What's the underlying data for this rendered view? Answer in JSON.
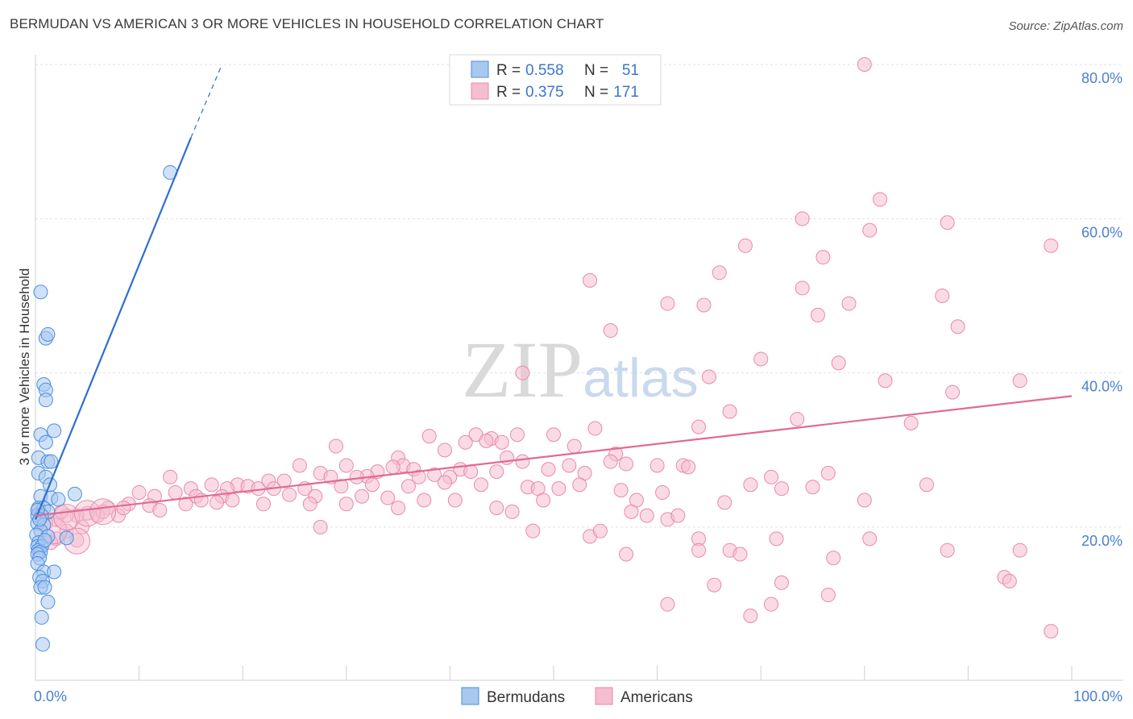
{
  "header": {
    "title": "BERMUDAN VS AMERICAN 3 OR MORE VEHICLES IN HOUSEHOLD CORRELATION CHART",
    "source": "Source: ZipAtlas.com"
  },
  "colors": {
    "blue": "#4a8fe0",
    "blue_fill": "#a9c8f0",
    "blue_line": "#2e6fcc",
    "pink": "#e88aa8",
    "pink_fill": "#f5bdd0",
    "pink_line": "#e06a95",
    "tick": "#4a7fd0"
  },
  "chart_data": {
    "type": "scatter",
    "title": "BERMUDAN VS AMERICAN 3 OR MORE VEHICLES IN HOUSEHOLD CORRELATION CHART",
    "ylabel": "3 or more Vehicles in Household",
    "xlabel": "",
    "xlim": [
      0,
      100
    ],
    "ylim": [
      0,
      82
    ],
    "x_tick_labels": [
      "0.0%",
      "100.0%"
    ],
    "y_ticks": [
      20,
      40,
      60,
      80
    ],
    "y_tick_labels": [
      "20.0%",
      "40.0%",
      "60.0%",
      "80.0%"
    ],
    "grid": true,
    "watermark": "ZIPatlas",
    "legend": {
      "position": "top-center",
      "entries": [
        {
          "r_label": "R =",
          "r_value": "0.558",
          "n_label": "N =",
          "n_value": "51"
        },
        {
          "r_label": "R =",
          "r_value": "0.375",
          "n_label": "N =",
          "n_value": "171"
        }
      ]
    },
    "bottom_legend": [
      "Bermudans",
      "Americans"
    ],
    "series": [
      {
        "name": "Bermudans",
        "color": "#4a8fe0",
        "trend": {
          "x": [
            0,
            15
          ],
          "y": [
            21,
            70.5
          ],
          "dashed_to": [
            18,
            80
          ]
        },
        "points": [
          [
            13,
            66
          ],
          [
            0.5,
            50.5
          ],
          [
            1,
            44.5
          ],
          [
            1.2,
            45
          ],
          [
            0.8,
            38.5
          ],
          [
            1,
            37.8
          ],
          [
            1,
            36.5
          ],
          [
            1.8,
            32.5
          ],
          [
            0.5,
            32
          ],
          [
            1,
            31
          ],
          [
            0.3,
            29
          ],
          [
            1.2,
            28.5
          ],
          [
            1.5,
            28.5
          ],
          [
            0.3,
            27
          ],
          [
            1,
            26.5
          ],
          [
            1.4,
            25.5
          ],
          [
            3.8,
            24.3
          ],
          [
            0.5,
            24
          ],
          [
            1.5,
            23.8
          ],
          [
            2.2,
            23.6
          ],
          [
            0.3,
            22.5
          ],
          [
            0.8,
            22.5
          ],
          [
            1.2,
            22
          ],
          [
            0.2,
            21.5
          ],
          [
            0.6,
            21.5
          ],
          [
            0.2,
            20.5
          ],
          [
            0.8,
            20.3
          ],
          [
            0.5,
            19.5
          ],
          [
            0.1,
            19
          ],
          [
            1.2,
            18.8
          ],
          [
            3,
            18.6
          ],
          [
            0.3,
            18
          ],
          [
            0.2,
            17.5
          ],
          [
            0.6,
            17.5
          ],
          [
            0.3,
            17
          ],
          [
            0.5,
            16.8
          ],
          [
            0.2,
            16.5
          ],
          [
            0.4,
            16
          ],
          [
            0.2,
            15.3
          ],
          [
            0.8,
            14.2
          ],
          [
            1.8,
            14.2
          ],
          [
            0.4,
            13.5
          ],
          [
            0.7,
            13
          ],
          [
            0.5,
            12.2
          ],
          [
            0.9,
            12.2
          ],
          [
            1.2,
            10.3
          ],
          [
            0.6,
            8.3
          ],
          [
            0.7,
            4.8
          ],
          [
            0.2,
            22.2
          ],
          [
            0.4,
            21
          ],
          [
            0.9,
            18.3
          ]
        ]
      },
      {
        "name": "Americans",
        "color": "#e88aa8",
        "trend": {
          "x": [
            0,
            100
          ],
          "y": [
            21.5,
            37
          ]
        },
        "points": [
          [
            80,
            80
          ],
          [
            81.5,
            62.5
          ],
          [
            74,
            60
          ],
          [
            88,
            59.5
          ],
          [
            80.5,
            58.5
          ],
          [
            68.5,
            56.5
          ],
          [
            76,
            55
          ],
          [
            98,
            56.5
          ],
          [
            66,
            53
          ],
          [
            53.5,
            52
          ],
          [
            74,
            51
          ],
          [
            87.5,
            50
          ],
          [
            61,
            49
          ],
          [
            78.5,
            49
          ],
          [
            64.5,
            48.8
          ],
          [
            75.5,
            47.5
          ],
          [
            89,
            46
          ],
          [
            55.5,
            45.5
          ],
          [
            70,
            41.8
          ],
          [
            77.5,
            41.3
          ],
          [
            47,
            40
          ],
          [
            65,
            39.5
          ],
          [
            82,
            39
          ],
          [
            95,
            39
          ],
          [
            88.5,
            37.5
          ],
          [
            67,
            35
          ],
          [
            73.5,
            34
          ],
          [
            84.5,
            33.5
          ],
          [
            64,
            33
          ],
          [
            54,
            32.8
          ],
          [
            50,
            32
          ],
          [
            38,
            31.8
          ],
          [
            42.5,
            32
          ],
          [
            44,
            31.5
          ],
          [
            43.5,
            31.2
          ],
          [
            45,
            31
          ],
          [
            46.5,
            32
          ],
          [
            41.5,
            31
          ],
          [
            52,
            30.5
          ],
          [
            29,
            30.5
          ],
          [
            39.5,
            30
          ],
          [
            56,
            29.5
          ],
          [
            35,
            29
          ],
          [
            45.5,
            29
          ],
          [
            55.5,
            28.5
          ],
          [
            47,
            28.5
          ],
          [
            60,
            28
          ],
          [
            62.5,
            28
          ],
          [
            63,
            27.8
          ],
          [
            51.5,
            28
          ],
          [
            49.5,
            27.5
          ],
          [
            57,
            28.2
          ],
          [
            35.5,
            28
          ],
          [
            27.5,
            27
          ],
          [
            25.5,
            28
          ],
          [
            34.5,
            27.8
          ],
          [
            30,
            28
          ],
          [
            36.5,
            27.5
          ],
          [
            33,
            27.2
          ],
          [
            41,
            27.5
          ],
          [
            42,
            27.2
          ],
          [
            44.5,
            27.2
          ],
          [
            53,
            27
          ],
          [
            38.5,
            26.8
          ],
          [
            40,
            26.5
          ],
          [
            32,
            26.6
          ],
          [
            37,
            26.5
          ],
          [
            31,
            26.5
          ],
          [
            28.5,
            26.5
          ],
          [
            24,
            26
          ],
          [
            22.5,
            26
          ],
          [
            19.5,
            25.5
          ],
          [
            13,
            26.5
          ],
          [
            20.5,
            25.3
          ],
          [
            18.5,
            25
          ],
          [
            21.5,
            25
          ],
          [
            17,
            25.5
          ],
          [
            15,
            25
          ],
          [
            23,
            25
          ],
          [
            26,
            25
          ],
          [
            29.5,
            25.3
          ],
          [
            32.5,
            25.5
          ],
          [
            36,
            25.3
          ],
          [
            39.5,
            25.8
          ],
          [
            43,
            25.5
          ],
          [
            47.5,
            25.2
          ],
          [
            48.5,
            25
          ],
          [
            50.5,
            25
          ],
          [
            52.5,
            25.5
          ],
          [
            56.5,
            24.8
          ],
          [
            75,
            25.2
          ],
          [
            86,
            25.5
          ],
          [
            72,
            25
          ],
          [
            69,
            25.5
          ],
          [
            71,
            26.5
          ],
          [
            76.5,
            27
          ],
          [
            10,
            24.5
          ],
          [
            11.5,
            24
          ],
          [
            13.5,
            24.5
          ],
          [
            15.5,
            24
          ],
          [
            16,
            23.5
          ],
          [
            18,
            24
          ],
          [
            19,
            23.5
          ],
          [
            24.5,
            24.2
          ],
          [
            27,
            24
          ],
          [
            31.5,
            24
          ],
          [
            34,
            23.8
          ],
          [
            37.5,
            23.5
          ],
          [
            40.5,
            23.5
          ],
          [
            49,
            23.5
          ],
          [
            58,
            23.5
          ],
          [
            60.5,
            24.5
          ],
          [
            66.5,
            23.2
          ],
          [
            80,
            23.5
          ],
          [
            9,
            23
          ],
          [
            11,
            22.8
          ],
          [
            14.5,
            23
          ],
          [
            17.5,
            23.2
          ],
          [
            22,
            23
          ],
          [
            26.5,
            23
          ],
          [
            30,
            23
          ],
          [
            35,
            22.5
          ],
          [
            44.5,
            22.5
          ],
          [
            46,
            22
          ],
          [
            57.5,
            22
          ],
          [
            59,
            21.5
          ],
          [
            61,
            21
          ],
          [
            62,
            21.5
          ],
          [
            7,
            22.5
          ],
          [
            8,
            21.5
          ],
          [
            6,
            21.5
          ],
          [
            5,
            21.8
          ],
          [
            4,
            21.5
          ],
          [
            3,
            21.5
          ],
          [
            2,
            21
          ],
          [
            1,
            20.5
          ],
          [
            0.5,
            21.5
          ],
          [
            2.5,
            22
          ],
          [
            6.5,
            22
          ],
          [
            8.5,
            22.5
          ],
          [
            12,
            22.2
          ],
          [
            4.5,
            20
          ],
          [
            3,
            19.5
          ],
          [
            2,
            18.5
          ],
          [
            4,
            18.3
          ],
          [
            1.5,
            18
          ],
          [
            27.5,
            20
          ],
          [
            48,
            19.5
          ],
          [
            53.5,
            18.8
          ],
          [
            54.5,
            19.5
          ],
          [
            64,
            18.5
          ],
          [
            71.5,
            18.5
          ],
          [
            80.5,
            18.5
          ],
          [
            88,
            17
          ],
          [
            95,
            17
          ],
          [
            64,
            17
          ],
          [
            67,
            17
          ],
          [
            68,
            16.5
          ],
          [
            77,
            16
          ],
          [
            57,
            16.5
          ],
          [
            93.5,
            13.5
          ],
          [
            94,
            13
          ],
          [
            72,
            12.8
          ],
          [
            65.5,
            12.5
          ],
          [
            76.5,
            11.2
          ],
          [
            61,
            10
          ],
          [
            71,
            10
          ],
          [
            69,
            8.5
          ],
          [
            98,
            6.5
          ],
          [
            0.3,
            22.3
          ]
        ],
        "big_points": [
          [
            4,
            18.2
          ],
          [
            1.8,
            19.5
          ],
          [
            3,
            21.3
          ],
          [
            5,
            21.8
          ],
          [
            6.5,
            22
          ]
        ]
      }
    ]
  }
}
